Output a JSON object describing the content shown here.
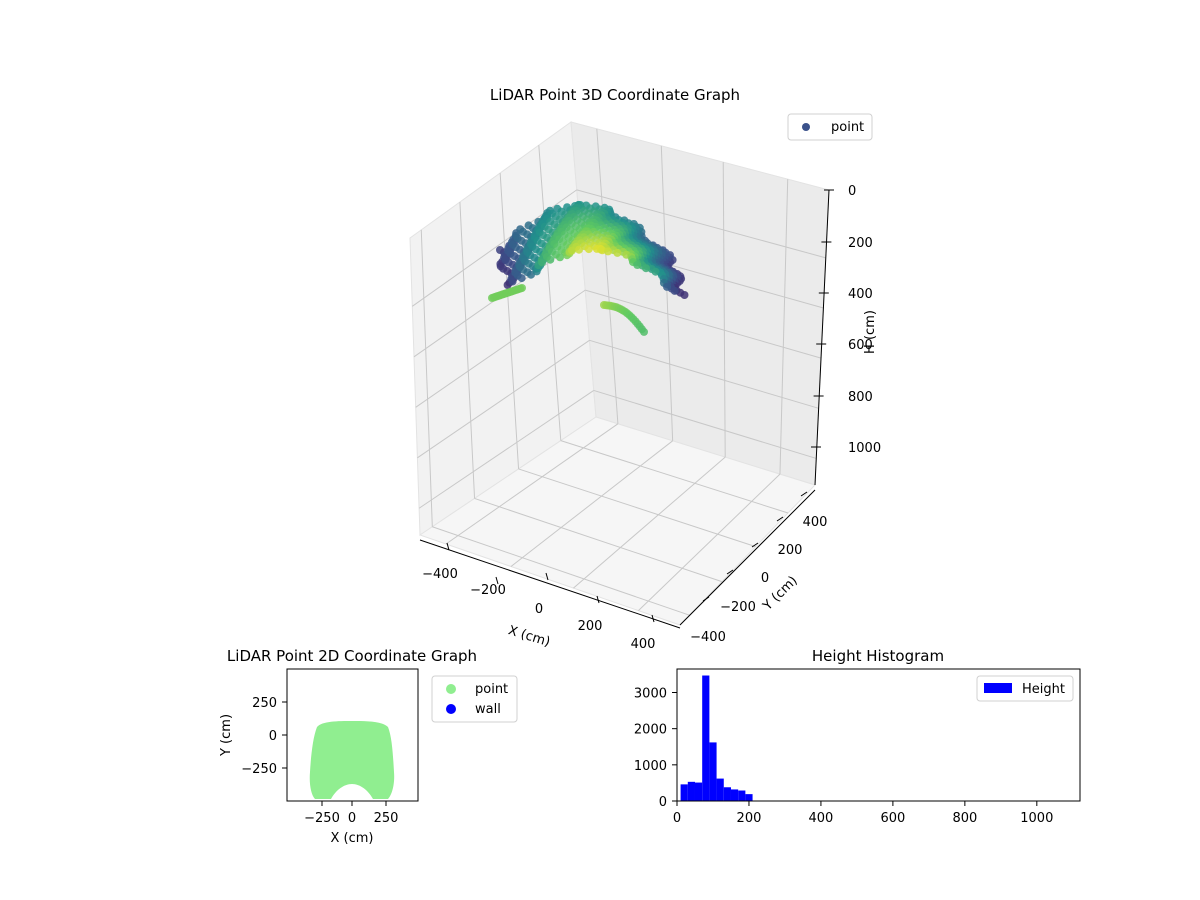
{
  "chart_data": [
    {
      "type": "scatter3d",
      "title": "LiDAR Point 3D Coordinate Graph",
      "xlabel": "X (cm)",
      "ylabel": "Y (cm)",
      "zlabel": "H (cm)",
      "x_ticks": [
        "−400",
        "−200",
        "0",
        "200",
        "400"
      ],
      "y_ticks": [
        "−400",
        "−200",
        "0",
        "200",
        "400"
      ],
      "z_ticks": [
        "0",
        "200",
        "400",
        "600",
        "800",
        "1000"
      ],
      "xlim": [
        -450,
        450
      ],
      "ylim": [
        -450,
        450
      ],
      "zlim": [
        0,
        1100
      ],
      "z_inverted": true,
      "legend": [
        "point"
      ],
      "legend_position": "top-right",
      "colormap": "viridis",
      "grid": true,
      "shape": "arch-shaped point cloud: x from about -300 to 300 cm, y from about -460 to 100 cm, heights about 20 to 210 cm"
    },
    {
      "type": "scatter",
      "title": "LiDAR Point 2D Coordinate Graph",
      "xlabel": "X (cm)",
      "ylabel": "Y (cm)",
      "x_ticks": [
        "−250",
        "0",
        "250"
      ],
      "y_ticks": [
        "250",
        "0",
        "−250"
      ],
      "xlim": [
        -500,
        500
      ],
      "ylim": [
        -500,
        500
      ],
      "legend": [
        "point",
        "wall"
      ],
      "legend_position": "outside-right",
      "series_colors": {
        "point": "#90ee90",
        "wall": "#0000ff"
      },
      "footprint_x_range": [
        -300,
        300
      ],
      "footprint_y_range": [
        -460,
        100
      ]
    },
    {
      "type": "histogram",
      "title": "Height Histogram",
      "legend": [
        "Height"
      ],
      "legend_position": "top-right",
      "bar_color": "#0000ff",
      "x_ticks": [
        "0",
        "200",
        "400",
        "600",
        "800",
        "1000"
      ],
      "y_ticks": [
        "0",
        "1000",
        "2000",
        "3000"
      ],
      "xlim": [
        0,
        1120
      ],
      "ylim": [
        0,
        3650
      ],
      "bins": [
        {
          "start": 10,
          "end": 30,
          "count": 460
        },
        {
          "start": 30,
          "end": 50,
          "count": 530
        },
        {
          "start": 50,
          "end": 70,
          "count": 510
        },
        {
          "start": 70,
          "end": 90,
          "count": 3470
        },
        {
          "start": 90,
          "end": 110,
          "count": 1620
        },
        {
          "start": 110,
          "end": 130,
          "count": 620
        },
        {
          "start": 130,
          "end": 150,
          "count": 380
        },
        {
          "start": 150,
          "end": 170,
          "count": 320
        },
        {
          "start": 170,
          "end": 190,
          "count": 290
        },
        {
          "start": 190,
          "end": 210,
          "count": 190
        }
      ]
    }
  ]
}
